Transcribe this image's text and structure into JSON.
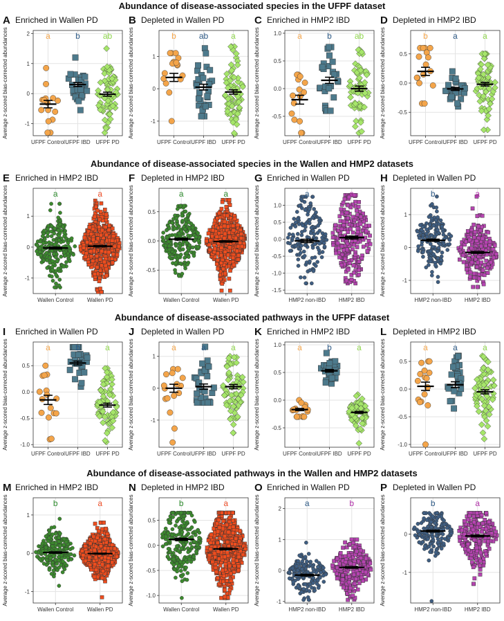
{
  "sections": [
    {
      "title": "Abundance of disease-associated species in the UFPF dataset"
    },
    {
      "title": "Abundance of disease-associated species in the Wallen and HMP2 datasets"
    },
    {
      "title": "Abundance of disease-associated pathways in the UFPF dataset"
    },
    {
      "title": "Abundance of disease-associated pathways in the Wallen and HMP2 datasets"
    }
  ],
  "colors": {
    "orange": "#F4A54A",
    "slate": "#4D7A8C",
    "lime": "#A6E66A",
    "darkgreen": "#3C8A2E",
    "redorange": "#EE4D1E",
    "navy": "#3F5E82",
    "magenta": "#B544B0",
    "letter_orange": "#F4A54A",
    "letter_blue": "#2E5A86",
    "letter_lime": "#8FD64D",
    "letter_green": "#2E8B2E",
    "letter_red": "#F0502A",
    "letter_magenta": "#B030A8"
  },
  "ylabel": "Average z-scored bias-corrected abundances",
  "chart_data": [
    {
      "type": "scatter",
      "panel": "A",
      "title": "Enriched in Wallen PD",
      "xlabel": "",
      "ylabel": "Average z-scored bias-corrected abundances",
      "categories": [
        "UFPF Control",
        "UFPF IBD",
        "UFPF PD"
      ],
      "ylim": [
        -1.4,
        2.1
      ],
      "yticks": [
        -1,
        0,
        1,
        2
      ],
      "letters": [
        "a",
        "b",
        "ab"
      ],
      "letter_colors": [
        "letter_orange",
        "letter_blue",
        "letter_lime"
      ],
      "groups": [
        {
          "n": 15,
          "mean": -0.35,
          "sd": 0.48,
          "min": -1.3,
          "max": 0.85,
          "color": "orange",
          "shape": "circle"
        },
        {
          "n": 29,
          "mean": 0.3,
          "sd": 0.35,
          "min": -0.55,
          "max": 1.2,
          "color": "slate",
          "shape": "square"
        },
        {
          "n": 68,
          "mean": -0.02,
          "sd": 0.55,
          "min": -1.3,
          "max": 1.5,
          "color": "lime",
          "shape": "diamond"
        }
      ]
    },
    {
      "type": "scatter",
      "panel": "B",
      "title": "Depleted in Wallen PD",
      "xlabel": "",
      "ylabel": "Average z-scored bias-corrected abundances",
      "categories": [
        "UFPF Control",
        "UFPF IBD",
        "UFPF PD"
      ],
      "ylim": [
        -1.45,
        1.8
      ],
      "yticks": [
        -1,
        0,
        1
      ],
      "letters": [
        "b",
        "ab",
        "a"
      ],
      "letter_colors": [
        "letter_orange",
        "letter_blue",
        "letter_lime"
      ],
      "groups": [
        {
          "n": 16,
          "mean": 0.35,
          "sd": 0.5,
          "min": -1.0,
          "max": 1.1,
          "color": "orange",
          "shape": "circle"
        },
        {
          "n": 29,
          "mean": 0.05,
          "sd": 0.48,
          "min": -0.85,
          "max": 1.25,
          "color": "slate",
          "shape": "square"
        },
        {
          "n": 68,
          "mean": -0.1,
          "sd": 0.55,
          "min": -1.4,
          "max": 1.3,
          "color": "lime",
          "shape": "diamond"
        }
      ]
    },
    {
      "type": "scatter",
      "panel": "C",
      "title": "Enriched in HMP2 IBD",
      "xlabel": "",
      "ylabel": "Average z-scored bias-corrected abundances",
      "categories": [
        "UFPF Control",
        "UFPF IBD",
        "UFPF PD"
      ],
      "ylim": [
        -0.85,
        1.05
      ],
      "yticks": [
        -0.5,
        0.0,
        0.5,
        1.0
      ],
      "letters": [
        "a",
        "b",
        "ab"
      ],
      "letter_colors": [
        "letter_orange",
        "letter_blue",
        "letter_lime"
      ],
      "groups": [
        {
          "n": 16,
          "mean": -0.2,
          "sd": 0.32,
          "min": -0.8,
          "max": 0.25,
          "color": "orange",
          "shape": "circle"
        },
        {
          "n": 29,
          "mean": 0.15,
          "sd": 0.3,
          "min": -0.4,
          "max": 0.75,
          "color": "slate",
          "shape": "square"
        },
        {
          "n": 68,
          "mean": 0.0,
          "sd": 0.38,
          "min": -0.8,
          "max": 0.7,
          "color": "lime",
          "shape": "diamond"
        }
      ]
    },
    {
      "type": "scatter",
      "panel": "D",
      "title": "Depleted in HMP2 IBD",
      "xlabel": "",
      "ylabel": "Average z-scored bias-corrected abundances",
      "categories": [
        "UFPF Control",
        "UFPF IBD",
        "UFPF PD"
      ],
      "ylim": [
        -0.9,
        0.9
      ],
      "yticks": [
        -0.5,
        0.0,
        0.5
      ],
      "letters": [
        "b",
        "a",
        "a"
      ],
      "letter_colors": [
        "letter_orange",
        "letter_blue",
        "letter_lime"
      ],
      "groups": [
        {
          "n": 16,
          "mean": 0.2,
          "sd": 0.28,
          "min": -0.35,
          "max": 0.6,
          "color": "orange",
          "shape": "circle"
        },
        {
          "n": 29,
          "mean": -0.1,
          "sd": 0.14,
          "min": -0.4,
          "max": 0.2,
          "color": "slate",
          "shape": "square"
        },
        {
          "n": 68,
          "mean": -0.02,
          "sd": 0.25,
          "min": -0.8,
          "max": 0.5,
          "color": "lime",
          "shape": "diamond"
        }
      ]
    },
    {
      "type": "scatter",
      "panel": "E",
      "title": "Enriched in HMP2 IBD",
      "xlabel": "",
      "ylabel": "Average z-scored bias-corrected abundances",
      "categories": [
        "Wallen Control",
        "Wallen PD"
      ],
      "ylim": [
        -1.5,
        1.9
      ],
      "yticks": [
        -1,
        0,
        1
      ],
      "letters": [
        "a",
        "a"
      ],
      "letter_colors": [
        "letter_green",
        "letter_red"
      ],
      "groups": [
        {
          "n": 230,
          "mean": -0.03,
          "sd": 0.48,
          "min": -1.3,
          "max": 1.4,
          "color": "darkgreen",
          "shape": "circle"
        },
        {
          "n": 500,
          "mean": 0.03,
          "sd": 0.5,
          "min": -1.45,
          "max": 1.5,
          "color": "redorange",
          "shape": "square"
        }
      ]
    },
    {
      "type": "scatter",
      "panel": "F",
      "title": "Depleted in HMP2 IBD",
      "xlabel": "",
      "ylabel": "Average z-scored bias-corrected abundances",
      "categories": [
        "Wallen Control",
        "Wallen PD"
      ],
      "ylim": [
        -0.9,
        0.9
      ],
      "yticks": [
        -0.5,
        0.0,
        0.5
      ],
      "letters": [
        "a",
        "a"
      ],
      "letter_colors": [
        "letter_green",
        "letter_green"
      ],
      "groups": [
        {
          "n": 230,
          "mean": 0.03,
          "sd": 0.25,
          "min": -0.6,
          "max": 0.6,
          "color": "darkgreen",
          "shape": "circle"
        },
        {
          "n": 500,
          "mean": -0.01,
          "sd": 0.27,
          "min": -0.85,
          "max": 0.7,
          "color": "redorange",
          "shape": "square"
        }
      ]
    },
    {
      "type": "scatter",
      "panel": "G",
      "title": "Enriched in Wallen PD",
      "xlabel": "",
      "ylabel": "Average z-scored bias-corrected abundances",
      "categories": [
        "HMP2 non-IBD",
        "HMP2 IBD"
      ],
      "ylim": [
        -1.6,
        1.5
      ],
      "yticks": [
        -1.5,
        -1.0,
        -0.5,
        0.0,
        0.5,
        1.0
      ],
      "letters": [
        "a",
        "a"
      ],
      "letter_colors": [
        "letter_blue",
        "letter_magenta"
      ],
      "groups": [
        {
          "n": 160,
          "mean": -0.05,
          "sd": 0.62,
          "min": -1.3,
          "max": 1.25,
          "color": "navy",
          "shape": "circle"
        },
        {
          "n": 240,
          "mean": 0.05,
          "sd": 0.65,
          "min": -1.3,
          "max": 1.3,
          "color": "magenta",
          "shape": "square"
        }
      ]
    },
    {
      "type": "scatter",
      "panel": "H",
      "title": "Depleted in Wallen PD",
      "xlabel": "",
      "ylabel": "Average z-scored bias-corrected abundances",
      "categories": [
        "HMP2 non-IBD",
        "HMP2 IBD"
      ],
      "ylim": [
        -1.4,
        1.8
      ],
      "yticks": [
        -1,
        0,
        1
      ],
      "letters": [
        "b",
        "a"
      ],
      "letter_colors": [
        "letter_blue",
        "letter_magenta"
      ],
      "groups": [
        {
          "n": 160,
          "mean": 0.22,
          "sd": 0.42,
          "min": -1.05,
          "max": 1.55,
          "color": "navy",
          "shape": "circle"
        },
        {
          "n": 240,
          "mean": -0.15,
          "sd": 0.45,
          "min": -1.2,
          "max": 1.55,
          "color": "magenta",
          "shape": "square"
        }
      ]
    },
    {
      "type": "scatter",
      "panel": "I",
      "title": "Enriched in Wallen PD",
      "xlabel": "",
      "ylabel": "Average z-scored bias-corrected abundances",
      "categories": [
        "UFPF Control",
        "UFPF IBD",
        "UFPF PD"
      ],
      "ylim": [
        -1.05,
        0.95
      ],
      "yticks": [
        -1.0,
        -0.5,
        0.0,
        0.5
      ],
      "letters": [
        "a",
        "b",
        "a"
      ],
      "letter_colors": [
        "letter_orange",
        "letter_blue",
        "letter_lime"
      ],
      "groups": [
        {
          "n": 16,
          "mean": -0.15,
          "sd": 0.35,
          "min": -0.9,
          "max": 0.5,
          "color": "orange",
          "shape": "circle"
        },
        {
          "n": 29,
          "mean": 0.55,
          "sd": 0.2,
          "min": 0.1,
          "max": 0.85,
          "color": "slate",
          "shape": "square"
        },
        {
          "n": 68,
          "mean": -0.25,
          "sd": 0.3,
          "min": -0.95,
          "max": 0.45,
          "color": "lime",
          "shape": "diamond"
        }
      ]
    },
    {
      "type": "scatter",
      "panel": "J",
      "title": "Depleted in Wallen PD",
      "xlabel": "",
      "ylabel": "Average z-scored bias-corrected abundances",
      "categories": [
        "UFPF Control",
        "UFPF IBD",
        "UFPF PD"
      ],
      "ylim": [
        -1.85,
        1.45
      ],
      "yticks": [
        -1,
        0,
        1
      ],
      "letters": [
        "a",
        "a",
        "a"
      ],
      "letter_colors": [
        "letter_orange",
        "letter_blue",
        "letter_lime"
      ],
      "groups": [
        {
          "n": 16,
          "mean": 0.0,
          "sd": 0.5,
          "min": -1.7,
          "max": 0.6,
          "color": "orange",
          "shape": "circle"
        },
        {
          "n": 29,
          "mean": 0.05,
          "sd": 0.45,
          "min": -0.45,
          "max": 1.3,
          "color": "slate",
          "shape": "square"
        },
        {
          "n": 68,
          "mean": 0.05,
          "sd": 0.55,
          "min": -1.4,
          "max": 1.0,
          "color": "lime",
          "shape": "diamond"
        }
      ]
    },
    {
      "type": "scatter",
      "panel": "K",
      "title": "Enriched in HMP2 IBD",
      "xlabel": "",
      "ylabel": "Average z-scored bias-corrected abundances",
      "categories": [
        "UFPF Control",
        "UFPF IBD",
        "UFPF PD"
      ],
      "ylim": [
        -0.85,
        1.05
      ],
      "yticks": [
        -0.5,
        0.0,
        0.5,
        1.0
      ],
      "letters": [
        "a",
        "b",
        "a"
      ],
      "letter_colors": [
        "letter_orange",
        "letter_blue",
        "letter_lime"
      ],
      "groups": [
        {
          "n": 16,
          "mean": -0.17,
          "sd": 0.08,
          "min": -0.3,
          "max": 0.0,
          "color": "orange",
          "shape": "circle"
        },
        {
          "n": 29,
          "mean": 0.53,
          "sd": 0.13,
          "min": 0.3,
          "max": 0.85,
          "color": "slate",
          "shape": "square"
        },
        {
          "n": 68,
          "mean": -0.22,
          "sd": 0.14,
          "min": -0.78,
          "max": 0.1,
          "color": "lime",
          "shape": "diamond"
        }
      ]
    },
    {
      "type": "scatter",
      "panel": "L",
      "title": "Depleted in HMP2 IBD",
      "xlabel": "",
      "ylabel": "Average z-scored bias-corrected abundances",
      "categories": [
        "UFPF Control",
        "UFPF IBD",
        "UFPF PD"
      ],
      "ylim": [
        -1.05,
        0.85
      ],
      "yticks": [
        -1.0,
        -0.5,
        0.0,
        0.5
      ],
      "letters": [
        "a",
        "a",
        "a"
      ],
      "letter_colors": [
        "letter_orange",
        "letter_blue",
        "letter_lime"
      ],
      "groups": [
        {
          "n": 16,
          "mean": 0.05,
          "sd": 0.3,
          "min": -1.0,
          "max": 0.5,
          "color": "orange",
          "shape": "circle"
        },
        {
          "n": 29,
          "mean": 0.08,
          "sd": 0.28,
          "min": -0.35,
          "max": 0.6,
          "color": "slate",
          "shape": "square"
        },
        {
          "n": 68,
          "mean": -0.05,
          "sd": 0.3,
          "min": -0.9,
          "max": 0.6,
          "color": "lime",
          "shape": "diamond"
        }
      ]
    },
    {
      "type": "scatter",
      "panel": "M",
      "title": "Enriched in HMP2 IBD",
      "xlabel": "",
      "ylabel": "Average z-scored bias-corrected abundances",
      "categories": [
        "Wallen Control",
        "Wallen PD"
      ],
      "ylim": [
        -1.3,
        1.45
      ],
      "yticks": [
        -1,
        0,
        1
      ],
      "letters": [
        "b",
        "a"
      ],
      "letter_colors": [
        "letter_green",
        "letter_red"
      ],
      "groups": [
        {
          "n": 230,
          "mean": 0.02,
          "sd": 0.28,
          "min": -0.85,
          "max": 0.9,
          "color": "darkgreen",
          "shape": "circle"
        },
        {
          "n": 500,
          "mean": -0.01,
          "sd": 0.28,
          "min": -1.15,
          "max": 0.8,
          "color": "redorange",
          "shape": "square"
        }
      ]
    },
    {
      "type": "scatter",
      "panel": "N",
      "title": "Depleted in HMP2 IBD",
      "xlabel": "",
      "ylabel": "Average z-scored bias-corrected abundances",
      "categories": [
        "Wallen Control",
        "Wallen PD"
      ],
      "ylim": [
        -1.15,
        0.95
      ],
      "yticks": [
        -1.0,
        -0.5,
        0.0,
        0.5
      ],
      "letters": [
        "b",
        "a"
      ],
      "letter_colors": [
        "letter_green",
        "letter_red"
      ],
      "groups": [
        {
          "n": 230,
          "mean": 0.12,
          "sd": 0.35,
          "min": -1.05,
          "max": 0.65,
          "color": "darkgreen",
          "shape": "circle"
        },
        {
          "n": 500,
          "mean": -0.07,
          "sd": 0.38,
          "min": -1.05,
          "max": 0.65,
          "color": "redorange",
          "shape": "square"
        }
      ]
    },
    {
      "type": "scatter",
      "panel": "O",
      "title": "Enriched in Wallen PD",
      "xlabel": "",
      "ylabel": "Average z-scored bias-corrected abundances",
      "categories": [
        "HMP2 non-IBD",
        "HMP2 IBD"
      ],
      "ylim": [
        -1.05,
        2.35
      ],
      "yticks": [
        -1,
        0,
        1,
        2
      ],
      "letters": [
        "a",
        "b"
      ],
      "letter_colors": [
        "letter_blue",
        "letter_magenta"
      ],
      "groups": [
        {
          "n": 160,
          "mean": -0.15,
          "sd": 0.35,
          "min": -0.95,
          "max": 0.9,
          "color": "navy",
          "shape": "circle"
        },
        {
          "n": 240,
          "mean": 0.1,
          "sd": 0.42,
          "min": -0.95,
          "max": 1.0,
          "color": "magenta",
          "shape": "square"
        }
      ]
    },
    {
      "type": "scatter",
      "panel": "P",
      "title": "Depleted in Wallen PD",
      "xlabel": "",
      "ylabel": "Average z-scored bias-corrected abundances",
      "categories": [
        "HMP2 non-IBD",
        "HMP2 IBD"
      ],
      "ylim": [
        -1.8,
        0.95
      ],
      "yticks": [
        -1,
        0
      ],
      "letters": [
        "b",
        "a"
      ],
      "letter_colors": [
        "letter_blue",
        "letter_magenta"
      ],
      "groups": [
        {
          "n": 160,
          "mean": 0.08,
          "sd": 0.3,
          "min": -1.75,
          "max": 0.55,
          "color": "navy",
          "shape": "circle"
        },
        {
          "n": 240,
          "mean": -0.05,
          "sd": 0.38,
          "min": -1.3,
          "max": 0.55,
          "color": "magenta",
          "shape": "square"
        }
      ]
    }
  ]
}
